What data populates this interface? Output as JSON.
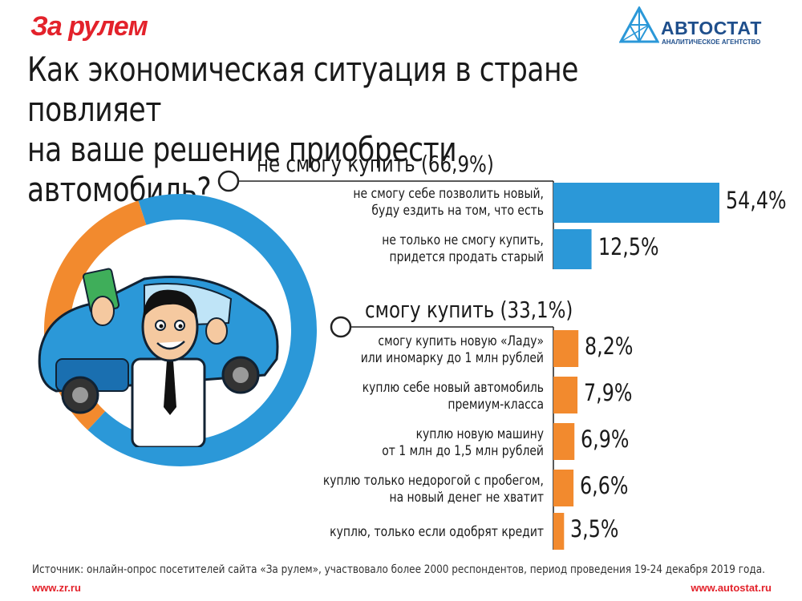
{
  "header": {
    "brand_left": "За рулем",
    "brand_right": "АВТОСТАТ",
    "brand_right_sub": "АНАЛИТИЧЕСКОЕ АГЕНТСТВО",
    "title_line1": "Как экономическая ситуация в стране повлияет",
    "title_line2": "на ваше решение приобрести автомобиль?"
  },
  "colors": {
    "blue": "#2b98d8",
    "orange": "#f28a2e",
    "red": "#e3222b",
    "navy": "#1f4f8c"
  },
  "chart_data": {
    "type": "bar",
    "title": "Как экономическая ситуация в стране повлияет на ваше решение приобрести автомобиль?",
    "unit": "%",
    "donut": [
      {
        "name": "не смогу купить",
        "value": 66.9,
        "color": "#2b98d8"
      },
      {
        "name": "смогу купить",
        "value": 33.1,
        "color": "#f28a2e"
      }
    ],
    "groups": [
      {
        "heading": "не смогу купить (66,9%)",
        "color": "#2b98d8",
        "rows": [
          {
            "line1": "не смогу себе позволить новый,",
            "line2": "буду ездить на том, что есть",
            "value": 54.4,
            "label": "54,4%"
          },
          {
            "line1": "не только не смогу купить,",
            "line2": "придется продать старый",
            "value": 12.5,
            "label": "12,5%"
          }
        ]
      },
      {
        "heading": "смогу купить (33,1%)",
        "color": "#f28a2e",
        "rows": [
          {
            "line1": "смогу купить новую «Ладу»",
            "line2": "или иномарку до 1 млн рублей",
            "value": 8.2,
            "label": "8,2%"
          },
          {
            "line1": "куплю себе новый автомобиль",
            "line2": "премиум-класса",
            "value": 7.9,
            "label": "7,9%"
          },
          {
            "line1": "куплю новую машину",
            "line2": "от 1 млн до 1,5 млн рублей",
            "value": 6.9,
            "label": "6,9%"
          },
          {
            "line1": "куплю только недорогой с пробегом,",
            "line2": "на новый денег не хватит",
            "value": 6.6,
            "label": "6,6%"
          },
          {
            "line1": "куплю, только если одобрят кредит",
            "line2": "",
            "value": 3.5,
            "label": "3,5%"
          }
        ]
      }
    ]
  },
  "footer": {
    "source": "Источник: онлайн-опрос посетителей сайта «За рулем», участвовало более 2000 респондентов, период проведения 19-24 декабря 2019 года.",
    "url_left": "www.zr.ru",
    "url_right": "www.autostat.ru"
  }
}
